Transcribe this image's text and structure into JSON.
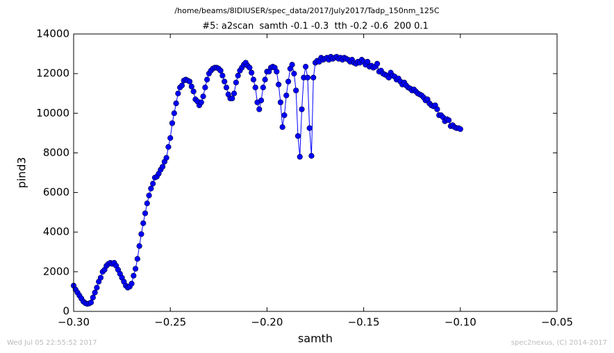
{
  "chart_data": {
    "type": "line",
    "suptitle": "/home/beams/8IDIUSER/spec_data/2017/July2017/Tadp_150nm_125C",
    "title": "#5: a2scan  samth -0.1 -0.3  tth -0.2 -0.6  200 0.1",
    "xlabel": "samth",
    "ylabel": "pind3",
    "footer_left": "Wed Jul 05 22:55:52 2017",
    "footer_right": "spec2nexus, (C) 2014-2017",
    "xlim": [
      -0.3,
      -0.05
    ],
    "ylim": [
      0,
      14000
    ],
    "xticks": [
      {
        "value": -0.3,
        "label": "−0.30"
      },
      {
        "value": -0.25,
        "label": "−0.25"
      },
      {
        "value": -0.2,
        "label": "−0.20"
      },
      {
        "value": -0.15,
        "label": "−0.15"
      },
      {
        "value": -0.1,
        "label": "−0.10"
      },
      {
        "value": -0.05,
        "label": "−0.05"
      }
    ],
    "yticks": [
      0,
      2000,
      4000,
      6000,
      8000,
      10000,
      12000,
      14000
    ],
    "grid": false,
    "x": [
      -0.3,
      -0.299,
      -0.298,
      -0.297,
      -0.296,
      -0.295,
      -0.294,
      -0.293,
      -0.292,
      -0.291,
      -0.29,
      -0.289,
      -0.288,
      -0.287,
      -0.286,
      -0.285,
      -0.284,
      -0.283,
      -0.282,
      -0.281,
      -0.28,
      -0.279,
      -0.278,
      -0.277,
      -0.276,
      -0.275,
      -0.274,
      -0.273,
      -0.272,
      -0.271,
      -0.27,
      -0.269,
      -0.268,
      -0.267,
      -0.266,
      -0.265,
      -0.264,
      -0.263,
      -0.262,
      -0.261,
      -0.26,
      -0.259,
      -0.258,
      -0.257,
      -0.256,
      -0.255,
      -0.254,
      -0.253,
      -0.252,
      -0.251,
      -0.25,
      -0.249,
      -0.248,
      -0.247,
      -0.246,
      -0.245,
      -0.244,
      -0.243,
      -0.242,
      -0.241,
      -0.24,
      -0.239,
      -0.238,
      -0.237,
      -0.236,
      -0.235,
      -0.234,
      -0.233,
      -0.232,
      -0.231,
      -0.23,
      -0.229,
      -0.228,
      -0.227,
      -0.226,
      -0.225,
      -0.224,
      -0.223,
      -0.222,
      -0.221,
      -0.22,
      -0.219,
      -0.218,
      -0.217,
      -0.216,
      -0.215,
      -0.214,
      -0.213,
      -0.212,
      -0.211,
      -0.21,
      -0.209,
      -0.208,
      -0.207,
      -0.206,
      -0.205,
      -0.204,
      -0.203,
      -0.202,
      -0.201,
      -0.2,
      -0.199,
      -0.198,
      -0.197,
      -0.196,
      -0.195,
      -0.194,
      -0.193,
      -0.192,
      -0.191,
      -0.19,
      -0.189,
      -0.188,
      -0.187,
      -0.186,
      -0.185,
      -0.184,
      -0.183,
      -0.182,
      -0.181,
      -0.18,
      -0.179,
      -0.178,
      -0.177,
      -0.176,
      -0.175,
      -0.174,
      -0.173,
      -0.172,
      -0.171,
      -0.17,
      -0.169,
      -0.168,
      -0.167,
      -0.166,
      -0.165,
      -0.164,
      -0.163,
      -0.162,
      -0.161,
      -0.16,
      -0.159,
      -0.158,
      -0.157,
      -0.156,
      -0.155,
      -0.154,
      -0.153,
      -0.152,
      -0.151,
      -0.15,
      -0.149,
      -0.148,
      -0.147,
      -0.146,
      -0.145,
      -0.144,
      -0.143,
      -0.142,
      -0.141,
      -0.14,
      -0.139,
      -0.138,
      -0.137,
      -0.136,
      -0.135,
      -0.134,
      -0.133,
      -0.132,
      -0.131,
      -0.13,
      -0.129,
      -0.128,
      -0.127,
      -0.126,
      -0.125,
      -0.124,
      -0.123,
      -0.122,
      -0.121,
      -0.12,
      -0.119,
      -0.118,
      -0.117,
      -0.116,
      -0.115,
      -0.114,
      -0.113,
      -0.112,
      -0.111,
      -0.11,
      -0.109,
      -0.108,
      -0.107,
      -0.106,
      -0.105,
      -0.104,
      -0.103,
      -0.102,
      -0.101,
      -0.1
    ],
    "series": [
      {
        "color": "#0000ff",
        "values": [
          1300,
          1100,
          950,
          800,
          650,
          500,
          420,
          380,
          400,
          450,
          700,
          950,
          1200,
          1500,
          1700,
          2000,
          2100,
          2300,
          2400,
          2450,
          2400,
          2450,
          2300,
          2100,
          1900,
          1700,
          1500,
          1300,
          1200,
          1250,
          1400,
          1800,
          2150,
          2650,
          3300,
          3900,
          4450,
          4950,
          5450,
          5850,
          6200,
          6450,
          6750,
          6800,
          6950,
          7150,
          7300,
          7550,
          7750,
          8300,
          8750,
          9500,
          10000,
          10500,
          11000,
          11300,
          11400,
          11650,
          11700,
          11650,
          11600,
          11350,
          11100,
          10700,
          10600,
          10400,
          10550,
          10850,
          11300,
          11700,
          12000,
          12150,
          12250,
          12300,
          12300,
          12250,
          12150,
          11900,
          11600,
          11300,
          10950,
          10750,
          10750,
          11000,
          11550,
          11900,
          12150,
          12300,
          12450,
          12550,
          12400,
          12300,
          12050,
          11700,
          11300,
          10550,
          10200,
          10650,
          11300,
          11700,
          12100,
          12100,
          12300,
          12350,
          12300,
          12100,
          11450,
          10550,
          9300,
          9900,
          10900,
          11600,
          12250,
          12450,
          12000,
          11150,
          8850,
          7800,
          10200,
          11800,
          12350,
          11800,
          9250,
          7850,
          11800,
          12550,
          12650,
          12600,
          12800,
          12700,
          12750,
          12800,
          12700,
          12850,
          12750,
          12800,
          12850,
          12750,
          12800,
          12700,
          12800,
          12750,
          12700,
          12600,
          12700,
          12550,
          12500,
          12600,
          12550,
          12700,
          12600,
          12450,
          12600,
          12350,
          12400,
          12300,
          12350,
          12500,
          12100,
          12150,
          12000,
          11950,
          11900,
          11800,
          12050,
          11900,
          11850,
          11700,
          11750,
          11600,
          11450,
          11550,
          11400,
          11300,
          11250,
          11150,
          11200,
          11100,
          11000,
          10950,
          10900,
          10800,
          10650,
          10700,
          10500,
          10400,
          10350,
          10400,
          10200,
          9900,
          9900,
          9800,
          9600,
          9700,
          9650,
          9350,
          9400,
          9300,
          9250,
          9250,
          9200
        ]
      }
    ]
  }
}
